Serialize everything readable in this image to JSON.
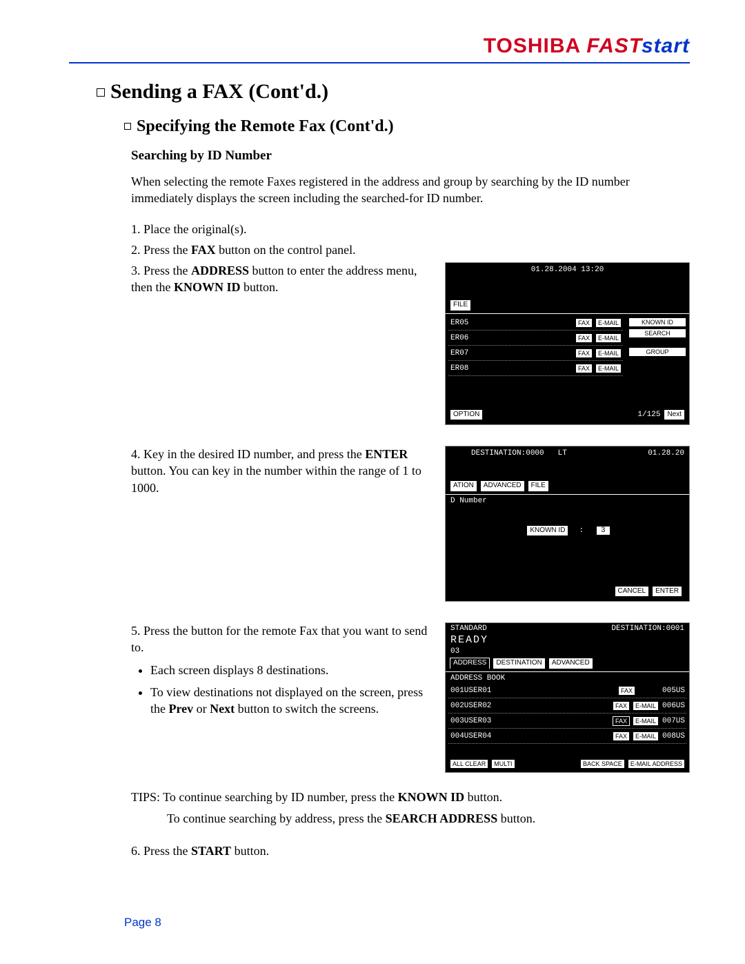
{
  "brand": {
    "toshiba": "TOSHIBA",
    "fast": "FAST",
    "start": "start"
  },
  "h1": "Sending a FAX (Cont'd.)",
  "h2": "Specifying the Remote Fax (Cont'd.)",
  "h3": "Searching by ID Number",
  "intro": "When selecting the remote Faxes registered in the address and group by searching by the ID number immediately displays the screen including the searched-for ID number.",
  "steps": {
    "s1": "1. Place the original(s).",
    "s2_pre": "2. Press the ",
    "s2_b": "FAX",
    "s2_post": " button on the control panel.",
    "s3_pre": "3. Press the ",
    "s3_b1": "ADDRESS",
    "s3_mid": " button to enter the address menu, then the ",
    "s3_b2": "KNOWN ID",
    "s3_post": " button.",
    "s4_pre": "4. Key in the desired ID number, and press the ",
    "s4_b": "ENTER",
    "s4_post": " button. You can key in the number within the range of 1 to 1000.",
    "s5": "5. Press the button for the remote Fax that you want to send to.",
    "s5_bullets": [
      "Each screen displays 8 destinations.",
      "To view destinations not displayed on the screen, press the Prev or Next button to switch the screens."
    ],
    "s6_pre": "6. Press the ",
    "s6_b": "START",
    "s6_post": " button."
  },
  "tips": {
    "l1_pre": "TIPS: To continue searching by ID number, press the ",
    "l1_b": "KNOWN ID",
    "l1_post": " button.",
    "l2_pre": "To continue searching by address, press the ",
    "l2_b": "SEARCH ADDRESS",
    "l2_post": " button."
  },
  "page": "Page 8",
  "lcd1": {
    "datetime": "01.28.2004 13:20",
    "file_tab": "FILE",
    "rows": [
      "ER05",
      "ER06",
      "ER07",
      "ER08"
    ],
    "fax": "FAX",
    "email": "E-MAIL",
    "side": [
      "KNOWN ID",
      "SEARCH ADDRESS",
      "GROUP"
    ],
    "option": "OPTION",
    "page": "1/125",
    "next": "Next"
  },
  "lcd2": {
    "dest": "DESTINATION:0000",
    "lt": "LT",
    "date": "01.28.20",
    "tabs": [
      "ATION",
      "ADVANCED",
      "FILE"
    ],
    "sub": "D Number",
    "known_id": "KNOWN ID",
    "colon": ":",
    "value": "3",
    "cancel": "CANCEL",
    "enter": "ENTER"
  },
  "lcd3": {
    "standard": "STANDARD",
    "dest": "DESTINATION:0001",
    "ready": "READY",
    "sub": "03",
    "tabs": [
      "ADDRESS",
      "DESTINATION",
      "ADVANCED"
    ],
    "subtitle": "ADDRESS BOOK",
    "rows": [
      {
        "id": "001",
        "name": "USER01",
        "fax": "FAX",
        "email": "",
        "right": "005US"
      },
      {
        "id": "002",
        "name": "USER02",
        "fax": "FAX",
        "email": "E-MAIL",
        "right": "006US"
      },
      {
        "id": "003",
        "name": "USER03",
        "fax": "FAX",
        "email": "E-MAIL",
        "right": "007US"
      },
      {
        "id": "004",
        "name": "USER04",
        "fax": "FAX",
        "email": "E-MAIL",
        "right": "008US"
      }
    ],
    "bottom": [
      "ALL CLEAR",
      "MULTI",
      "BACK SPACE",
      "E-MAIL ADDRESS"
    ]
  }
}
